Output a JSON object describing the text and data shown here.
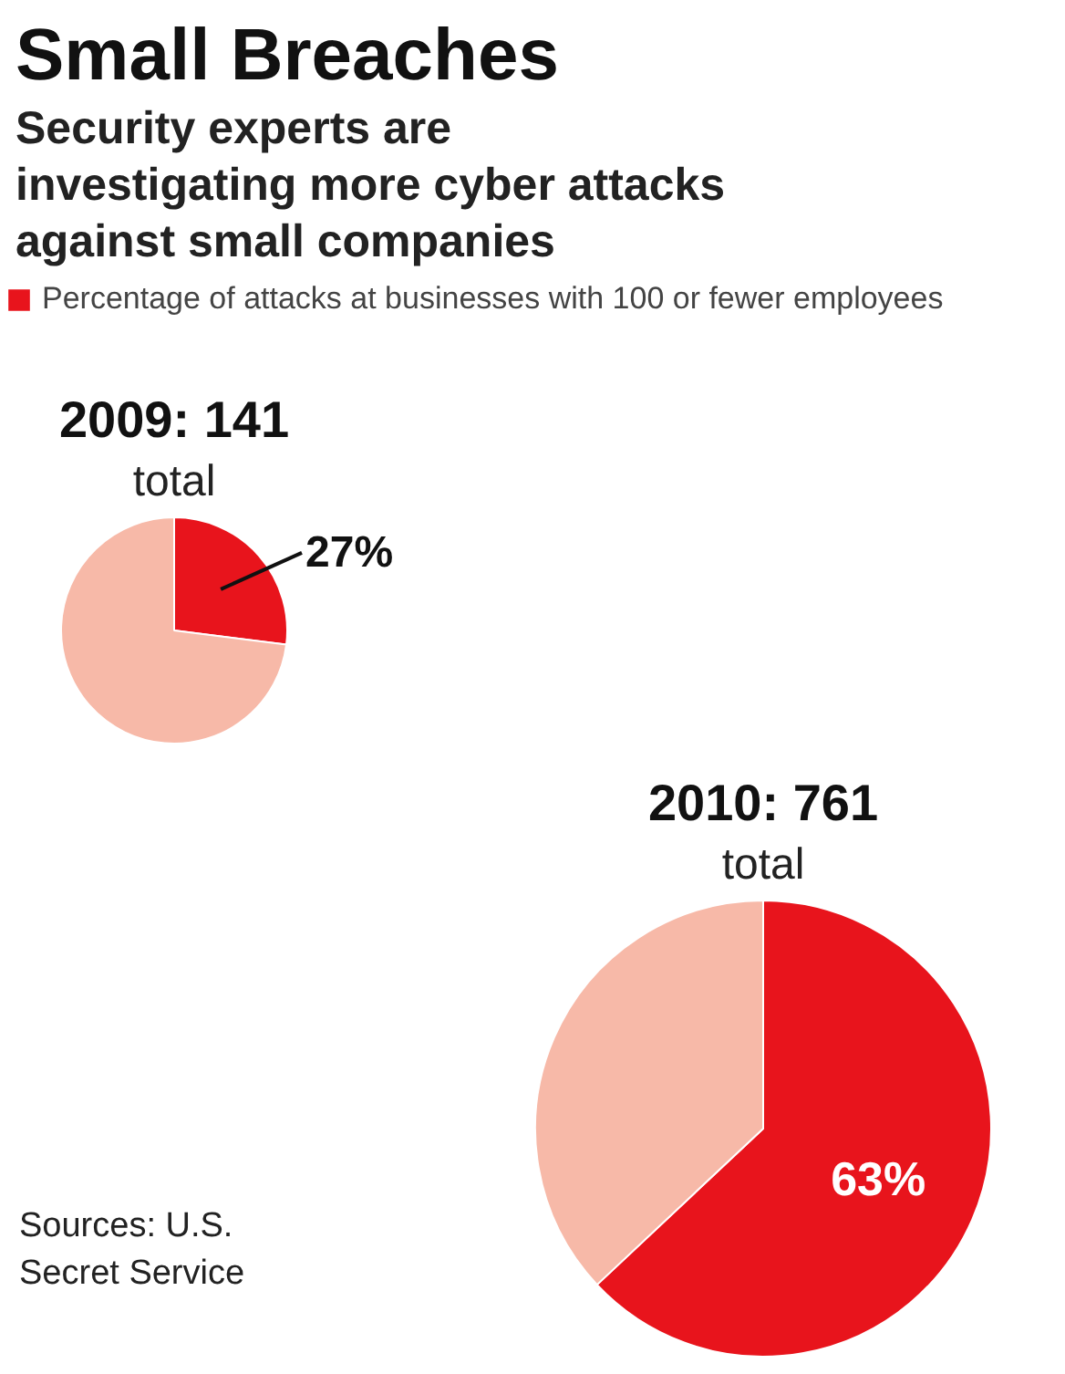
{
  "chart_data": [
    {
      "type": "other",
      "title": "Small Breaches",
      "subtitle": "Security experts are investigating more cyber attacks against small companies"
    },
    {
      "type": "pie",
      "title": "2009: 141",
      "subtitle": "total",
      "categories": [
        "Percentage of attacks at businesses with 100 or fewer employees",
        null
      ],
      "values": [
        27,
        73
      ],
      "colors": [
        "#e8141c",
        "#f7b9a8"
      ],
      "value_labels": [
        "27%",
        null
      ],
      "legend": "top"
    },
    {
      "type": "pie",
      "title": "2010: 761",
      "subtitle": "total",
      "categories": [
        null,
        null
      ],
      "values": [
        63,
        37
      ],
      "colors": [
        "#e8141c",
        "#f7b9a8"
      ],
      "value_labels": [
        "63%",
        null
      ],
      "annotations": [
        "Sources: U.S. Secret Service"
      ]
    }
  ]
}
